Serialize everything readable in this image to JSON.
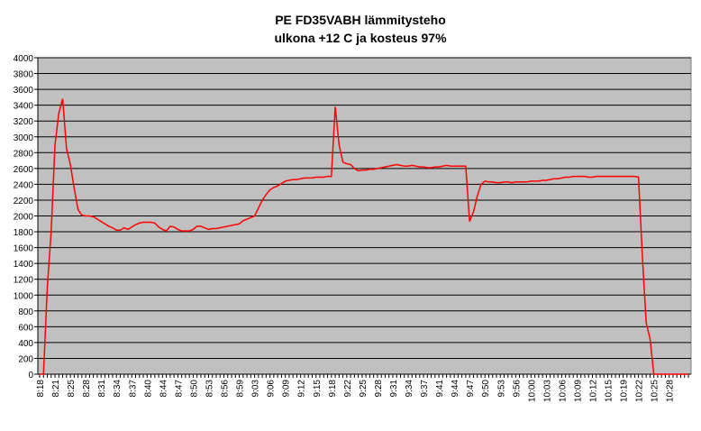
{
  "chart_data": {
    "type": "line",
    "title": [
      "PE FD35VABH lämmitysteho",
      "ulkona +12 C ja kosteus 97%"
    ],
    "categories": [
      "8:18",
      null,
      null,
      null,
      "8:21",
      null,
      null,
      null,
      "8:25",
      null,
      null,
      null,
      "8:28",
      null,
      null,
      null,
      "8:31",
      null,
      null,
      null,
      "8:34",
      null,
      null,
      null,
      "8:37",
      null,
      null,
      null,
      "8:40",
      null,
      null,
      null,
      "8:44",
      null,
      null,
      null,
      "8:47",
      null,
      null,
      null,
      "8:50",
      null,
      null,
      null,
      "8:53",
      null,
      null,
      null,
      "8:56",
      null,
      null,
      null,
      "8:59",
      null,
      null,
      null,
      "9:03",
      null,
      null,
      null,
      "9:06",
      null,
      null,
      null,
      "9:09",
      null,
      null,
      null,
      "9:12",
      null,
      null,
      null,
      "9:15",
      null,
      null,
      null,
      "9:18",
      null,
      null,
      null,
      "9:22",
      null,
      null,
      null,
      "9:25",
      null,
      null,
      null,
      "9:28",
      null,
      null,
      null,
      "9:31",
      null,
      null,
      null,
      "9:34",
      null,
      null,
      null,
      "9:37",
      null,
      null,
      null,
      "9:41",
      null,
      null,
      null,
      "9:44",
      null,
      null,
      null,
      "9:47",
      null,
      null,
      null,
      "9:50",
      null,
      null,
      null,
      "9:53",
      null,
      null,
      null,
      "9:56",
      null,
      null,
      null,
      "10:00",
      null,
      null,
      null,
      "10:03",
      null,
      null,
      null,
      "10:06",
      null,
      null,
      null,
      "10:09",
      null,
      null,
      null,
      "10:12",
      null,
      null,
      null,
      "10:15",
      null,
      null,
      null,
      "10:19",
      null,
      null,
      null,
      "10:22",
      null,
      null,
      null,
      "10:25",
      null,
      null,
      null,
      "10:28",
      null,
      null,
      null,
      null,
      null
    ],
    "values": [
      0,
      0,
      1100,
      1800,
      2900,
      3300,
      3480,
      2850,
      2650,
      2350,
      2080,
      2010,
      2000,
      2000,
      1990,
      1960,
      1930,
      1900,
      1870,
      1850,
      1820,
      1820,
      1850,
      1830,
      1860,
      1890,
      1910,
      1920,
      1920,
      1920,
      1910,
      1860,
      1830,
      1810,
      1870,
      1860,
      1830,
      1810,
      1810,
      1810,
      1830,
      1870,
      1870,
      1850,
      1830,
      1840,
      1840,
      1850,
      1860,
      1870,
      1880,
      1890,
      1900,
      1940,
      1960,
      1980,
      2000,
      2100,
      2200,
      2270,
      2330,
      2360,
      2380,
      2410,
      2440,
      2450,
      2460,
      2460,
      2470,
      2480,
      2480,
      2480,
      2490,
      2490,
      2490,
      2500,
      2500,
      3380,
      2900,
      2680,
      2660,
      2650,
      2600,
      2570,
      2580,
      2580,
      2590,
      2590,
      2600,
      2610,
      2620,
      2630,
      2640,
      2650,
      2640,
      2630,
      2630,
      2640,
      2630,
      2620,
      2620,
      2610,
      2610,
      2620,
      2620,
      2630,
      2640,
      2630,
      2630,
      2630,
      2630,
      2630,
      1930,
      2050,
      2250,
      2400,
      2440,
      2430,
      2430,
      2420,
      2420,
      2430,
      2430,
      2420,
      2430,
      2430,
      2430,
      2430,
      2440,
      2440,
      2440,
      2450,
      2450,
      2460,
      2470,
      2470,
      2480,
      2490,
      2490,
      2500,
      2500,
      2500,
      2500,
      2490,
      2490,
      2500,
      2500,
      2500,
      2500,
      2500,
      2500,
      2500,
      2500,
      2500,
      2500,
      2500,
      2490,
      1500,
      650,
      450,
      0,
      0,
      0,
      0,
      0,
      0,
      0,
      0,
      0,
      0
    ],
    "color": "#ff0000",
    "plot_background": "#c0c0c0",
    "ylim": [
      0,
      4000
    ],
    "yticks": [
      0,
      200,
      400,
      600,
      800,
      1000,
      1200,
      1400,
      1600,
      1800,
      2000,
      2200,
      2400,
      2600,
      2800,
      3000,
      3200,
      3400,
      3600,
      3800,
      4000
    ],
    "grid": true
  }
}
